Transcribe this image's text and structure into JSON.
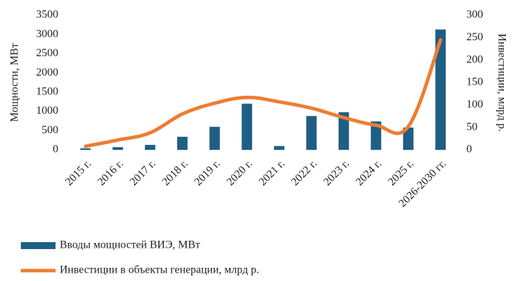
{
  "chart_data": {
    "type": "bar_line",
    "categories": [
      "2015 г.",
      "2016 г.",
      "2017 г.",
      "2018 г.",
      "2019 г.",
      "2020 г.",
      "2021 г.",
      "2022 г.",
      "2023 г.",
      "2024 г.",
      "2025 г.",
      "2026-2030 гг."
    ],
    "series": [
      {
        "name": "Вводы мощностей ВИЭ, МВт",
        "color": "#1f5f85",
        "type": "bar",
        "values": [
          40,
          70,
          130,
          340,
          600,
          1200,
          100,
          880,
          980,
          740,
          580,
          3130
        ]
      },
      {
        "name": "Инвестиции в объекты генерации, млрд р.",
        "color": "#ed7d31",
        "type": "line",
        "axis": "y2",
        "values": [
          8,
          22,
          38,
          80,
          104,
          117,
          107,
          93,
          72,
          55,
          52,
          245
        ]
      }
    ],
    "ylabel": "Мощности, МВт",
    "y2label": "Инвестиции, млрд р.",
    "ylim": [
      0,
      3500
    ],
    "yticks": [
      0,
      500,
      1000,
      1500,
      2000,
      2500,
      3000,
      3500
    ],
    "y2lim": [
      0,
      300
    ],
    "y2ticks": [
      0,
      50,
      100,
      150,
      200,
      250,
      300
    ],
    "legend": "bottom"
  }
}
